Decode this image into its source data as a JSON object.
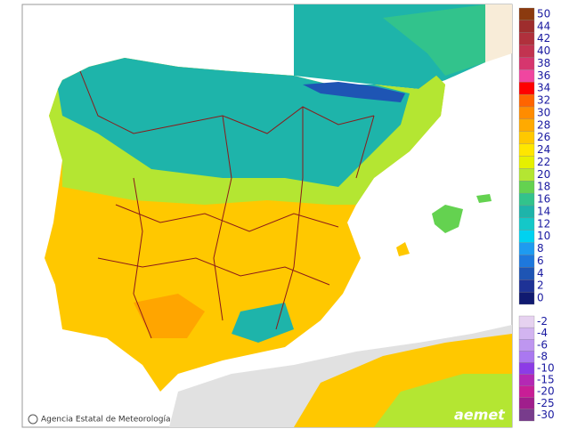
{
  "legend": {
    "warm": [
      {
        "label": "50",
        "color": "#8b3a0f"
      },
      {
        "label": "44",
        "color": "#9e2d2d"
      },
      {
        "label": "42",
        "color": "#b0303c"
      },
      {
        "label": "40",
        "color": "#c23350"
      },
      {
        "label": "38",
        "color": "#d6366e"
      },
      {
        "label": "36",
        "color": "#f046a0"
      },
      {
        "label": "34",
        "color": "#ff0000"
      },
      {
        "label": "32",
        "color": "#ff6400"
      },
      {
        "label": "30",
        "color": "#ff8c00"
      },
      {
        "label": "28",
        "color": "#ffaa00"
      },
      {
        "label": "26",
        "color": "#ffc800"
      },
      {
        "label": "24",
        "color": "#ffe600"
      },
      {
        "label": "22",
        "color": "#e6f000"
      },
      {
        "label": "20",
        "color": "#b4e632"
      },
      {
        "label": "18",
        "color": "#64d250"
      },
      {
        "label": "16",
        "color": "#32c38c"
      },
      {
        "label": "14",
        "color": "#1eb4aa"
      },
      {
        "label": "12",
        "color": "#14c8c8"
      },
      {
        "label": "10",
        "color": "#00d2f0"
      },
      {
        "label": "8",
        "color": "#1e9bf0"
      },
      {
        "label": "6",
        "color": "#1e78dc"
      },
      {
        "label": "4",
        "color": "#1e55b4"
      },
      {
        "label": "2",
        "color": "#1e3296"
      },
      {
        "label": "0",
        "color": "#101a70"
      }
    ],
    "cold": [
      {
        "label": "-2",
        "color": "#e6d2f0"
      },
      {
        "label": "-4",
        "color": "#d2b4f0"
      },
      {
        "label": "-6",
        "color": "#be96f0"
      },
      {
        "label": "-8",
        "color": "#aa78f0"
      },
      {
        "label": "-10",
        "color": "#8c3ce6"
      },
      {
        "label": "-15",
        "color": "#b428b4"
      },
      {
        "label": "-20",
        "color": "#c81e96"
      },
      {
        "label": "-25",
        "color": "#a01e8c"
      },
      {
        "label": "-30",
        "color": "#783c8c"
      }
    ]
  },
  "footer": {
    "credit": "Agencia Estatal de Meteorología",
    "logo": "aemet"
  }
}
